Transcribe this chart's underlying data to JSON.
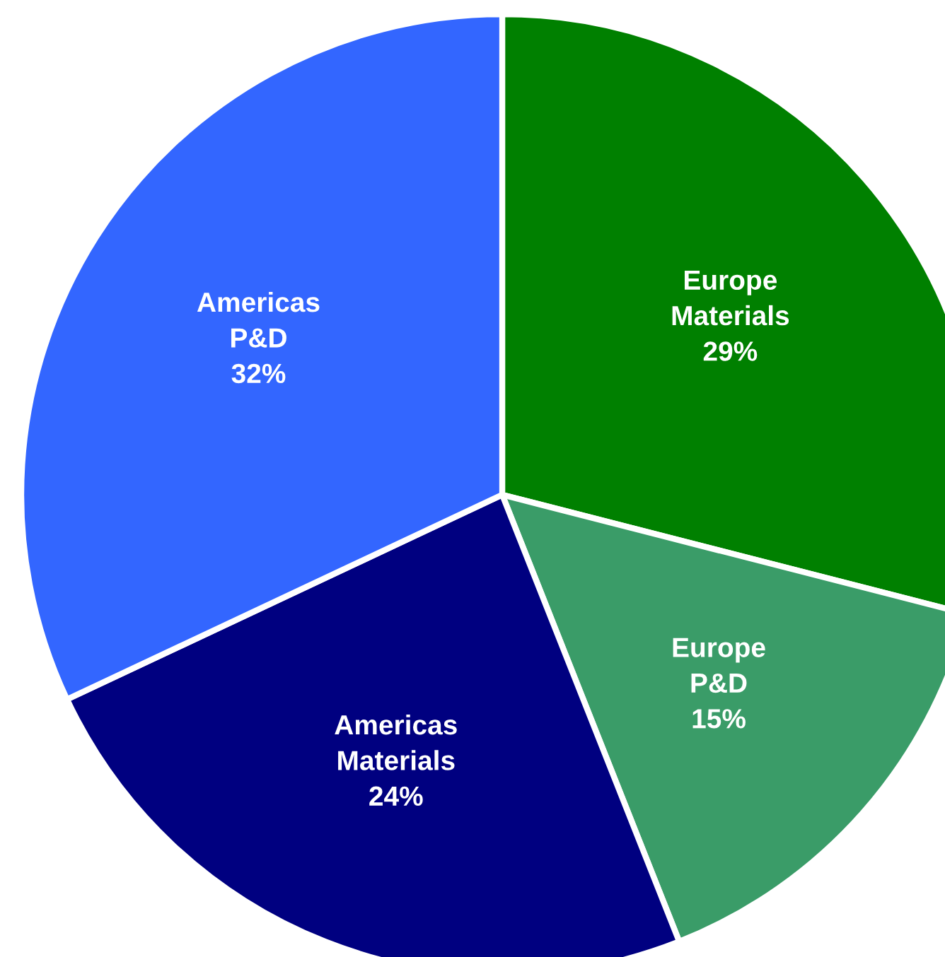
{
  "chart_data": {
    "type": "pie",
    "categories": [
      "Europe\nMaterials",
      "Europe\nP&D",
      "Americas\nMaterials",
      "Americas\nP&D"
    ],
    "values": [
      29,
      15,
      24,
      32
    ],
    "colors": [
      "#008000",
      "#3a9c68",
      "#000080",
      "#3366ff"
    ],
    "value_labels": [
      "29%",
      "15%",
      "24%",
      "32%"
    ],
    "legend": false
  }
}
